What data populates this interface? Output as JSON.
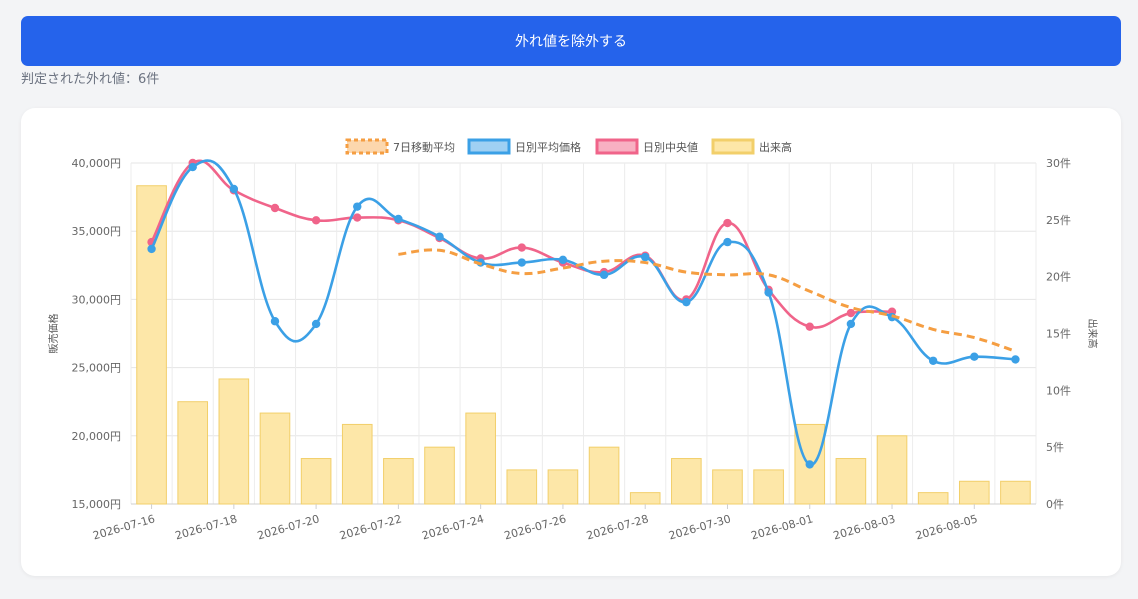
{
  "toolbar": {
    "exclude_outliers_label": "外れ値を除外する"
  },
  "status": {
    "outlier_count_text": "判定された外れ値：6件"
  },
  "chart_data": {
    "type": "bar+line",
    "x": [
      "2026-07-16",
      "2026-07-17",
      "2026-07-18",
      "2026-07-19",
      "2026-07-20",
      "2026-07-21",
      "2026-07-22",
      "2026-07-23",
      "2026-07-24",
      "2026-07-25",
      "2026-07-26",
      "2026-07-27",
      "2026-07-28",
      "2026-07-29",
      "2026-07-30",
      "2026-07-31",
      "2026-08-01",
      "2026-08-02",
      "2026-08-03",
      "2026-08-04",
      "2026-08-05",
      "2026-08-06"
    ],
    "x_tick_labels": [
      "2026-07-16",
      "2026-07-18",
      "2026-07-20",
      "2026-07-22",
      "2026-07-24",
      "2026-07-26",
      "2026-07-28",
      "2026-07-30",
      "2026-08-01",
      "2026-08-03",
      "2026-08-05"
    ],
    "y_left": {
      "label": "販売価格",
      "min": 15000,
      "max": 40000,
      "ticks": [
        "15,000円",
        "20,000円",
        "25,000円",
        "30,000円",
        "35,000円",
        "40,000円"
      ]
    },
    "y_right": {
      "label": "出来高",
      "min": 0,
      "max": 30,
      "ticks": [
        "0件",
        "5件",
        "10件",
        "15件",
        "20件",
        "25件",
        "30件"
      ]
    },
    "grid": true,
    "legend_position": "top-center",
    "series": [
      {
        "name": "7日移動平均",
        "type": "line",
        "style": "dashed",
        "color": "#f59e42",
        "axis": "left",
        "values": [
          null,
          null,
          null,
          null,
          null,
          null,
          33300,
          33600,
          32600,
          31900,
          32300,
          32800,
          32700,
          32000,
          31800,
          31800,
          30600,
          29400,
          28800,
          27800,
          27200,
          26200
        ]
      },
      {
        "name": "日別平均価格",
        "type": "line",
        "color": "#3ba0e6",
        "axis": "left",
        "values": [
          33700,
          39700,
          38100,
          28400,
          28200,
          36800,
          35900,
          34600,
          32700,
          32700,
          32900,
          31800,
          33100,
          29800,
          34200,
          30500,
          17900,
          28200,
          28700,
          25500,
          25800,
          25600
        ]
      },
      {
        "name": "日別中央値",
        "type": "line",
        "color": "#f0648a",
        "axis": "left",
        "values": [
          34200,
          40000,
          38000,
          36700,
          35800,
          36000,
          35800,
          34500,
          33000,
          33800,
          32700,
          32000,
          33200,
          30000,
          35600,
          30700,
          28000,
          29000,
          29100,
          null,
          null,
          null
        ]
      },
      {
        "name": "出来高",
        "type": "bar",
        "color": "#fde7a8",
        "axis": "right",
        "values": [
          28,
          9,
          11,
          8,
          4,
          7,
          4,
          5,
          8,
          3,
          3,
          5,
          1,
          4,
          3,
          3,
          7,
          4,
          6,
          1,
          2,
          2
        ]
      }
    ]
  },
  "colors": {
    "primary": "#2563eb",
    "ma": "#f59e42",
    "mean": "#3ba0e6",
    "median": "#f0648a",
    "volume_fill": "#fde7a8",
    "volume_stroke": "#f2cf6a"
  }
}
